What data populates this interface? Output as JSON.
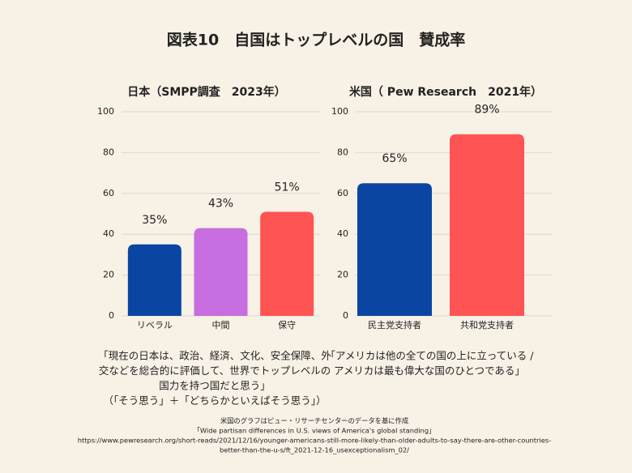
{
  "title": "図表10　自国はトップレベルの国　賛成率",
  "chart_data": [
    {
      "type": "bar",
      "title": "日本（SMPP調査　2023年）",
      "categories": [
        "リベラル",
        "中間",
        "保守"
      ],
      "values": [
        35,
        43,
        51
      ],
      "value_labels": [
        "35%",
        "43%",
        "51%"
      ],
      "colors": [
        "#0a45a3",
        "#c76ee0",
        "#ff5454"
      ],
      "ylim": [
        0,
        100
      ],
      "yticks": [
        0,
        20,
        40,
        60,
        80,
        100
      ],
      "grid": true,
      "caption": [
        "「現在の日本は、政治、経済、文化、安全保障、外",
        "交などを総合的に評価して、世界でトップレベルの",
        "国力を持つ国だと思う」",
        "（「そう思う」＋「どちらかといえばそう思う」）"
      ]
    },
    {
      "type": "bar",
      "title": "米国（ Pew Research　2021年）",
      "categories": [
        "民主党支持者",
        "共和党支持者"
      ],
      "values": [
        65,
        89
      ],
      "value_labels": [
        "65%",
        "89%"
      ],
      "colors": [
        "#0a45a3",
        "#ff5454"
      ],
      "ylim": [
        0,
        100
      ],
      "yticks": [
        0,
        20,
        40,
        60,
        80,
        100
      ],
      "grid": true,
      "caption": [
        "「アメリカは他の全ての国の上に立っている /",
        "アメリカは最も偉大な国のひとつである」"
      ]
    }
  ],
  "source": [
    "米国のグラフはピュー・リサーチセンターのデータを基に作成",
    "「Wide partisan differences in U.S. views of America's global standing」",
    "https://www.pewresearch.org/short-reads/2021/12/16/younger-americans-still-more-likely-than-older-adults-to-say-there-are-other-countries-",
    "better-than-the-u-s/ft_2021-12-16_usexceptionalism_02/"
  ]
}
